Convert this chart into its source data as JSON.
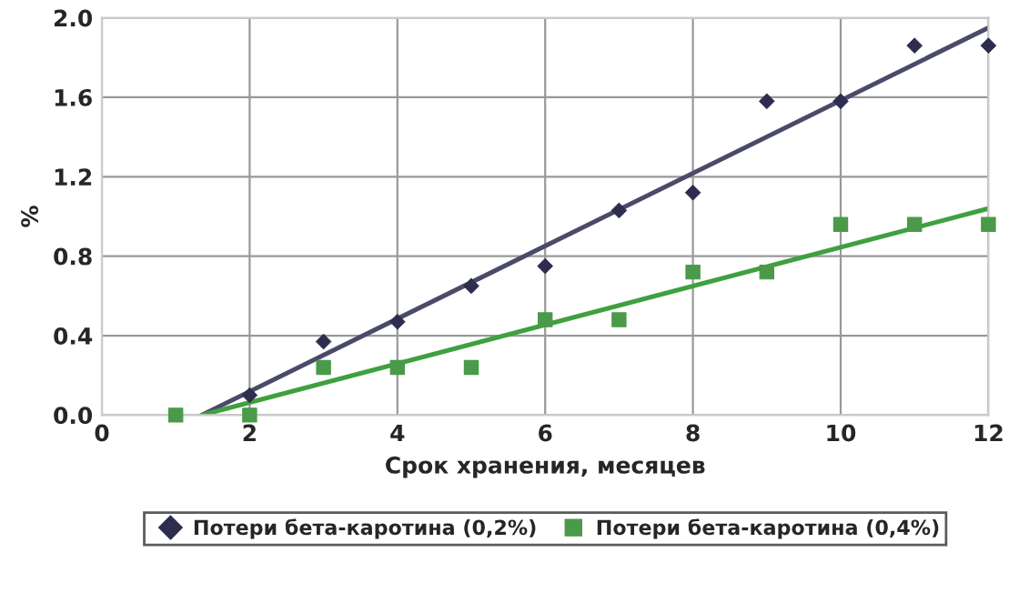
{
  "chart_data": {
    "type": "scatter",
    "xlabel": "Срок хранения, месяцев",
    "ylabel": "%",
    "xlim": [
      0,
      12
    ],
    "ylim": [
      0,
      2.0
    ],
    "xticks": [
      0,
      2,
      4,
      6,
      8,
      10,
      12
    ],
    "yticks": [
      {
        "value": 0,
        "label": "0.0"
      },
      {
        "value": 0.4,
        "label": "0.4"
      },
      {
        "value": 0.8,
        "label": "0.8"
      },
      {
        "value": 1.2,
        "label": "1.2"
      },
      {
        "value": 1.6,
        "label": "1.6"
      },
      {
        "value": 2.0,
        "label": "2.0"
      }
    ],
    "grid": true,
    "legend": "bottom",
    "series": [
      {
        "name": "Потери бета-каротина (0,2%)",
        "marker": "diamond",
        "color": "#2e2d4f",
        "x": [
          2,
          3,
          4,
          5,
          6,
          7,
          8,
          9,
          10,
          11,
          12
        ],
        "values": [
          0.1,
          0.37,
          0.47,
          0.65,
          0.75,
          1.03,
          1.12,
          1.58,
          1.58,
          1.86,
          1.86
        ]
      },
      {
        "name": "Потери бета-каротина (0,4%)",
        "marker": "square",
        "color": "#4a9a4a",
        "x": [
          1,
          2,
          3,
          4,
          5,
          6,
          7,
          8,
          9,
          10,
          11,
          12
        ],
        "values": [
          0,
          0,
          0.24,
          0.24,
          0.24,
          0.48,
          0.48,
          0.72,
          0.72,
          0.96,
          0.96,
          0.96
        ]
      },
      {
        "type": "line",
        "marker": "none",
        "color": "#4a4a6a",
        "x": [
          1.35,
          12
        ],
        "values": [
          0,
          1.95
        ]
      },
      {
        "type": "line",
        "marker": "none",
        "color": "#3fa03f",
        "x": [
          1.35,
          12
        ],
        "values": [
          0,
          1.04
        ]
      }
    ]
  }
}
